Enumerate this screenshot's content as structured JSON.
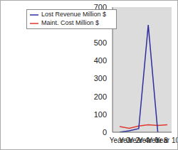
{
  "chart_data": {
    "type": "line",
    "categories": [
      "Year 0",
      "Year 2",
      "Year 4",
      "Year 6",
      "Year 8",
      "Year 10"
    ],
    "series": [
      {
        "name": "Maint. Cost Million $",
        "color": "#e03a2f",
        "values": [
          32,
          22,
          35,
          42,
          38,
          42
        ]
      },
      {
        "name": "Lost Revenue Million $",
        "color": "#2e2ea0",
        "values": [
          0,
          8,
          20,
          600,
          0,
          null
        ]
      }
    ],
    "ylim": [
      0,
      700
    ],
    "yticks": [
      0,
      100,
      200,
      300,
      400,
      500,
      600,
      700
    ],
    "grid": false,
    "legend": "upper left"
  }
}
